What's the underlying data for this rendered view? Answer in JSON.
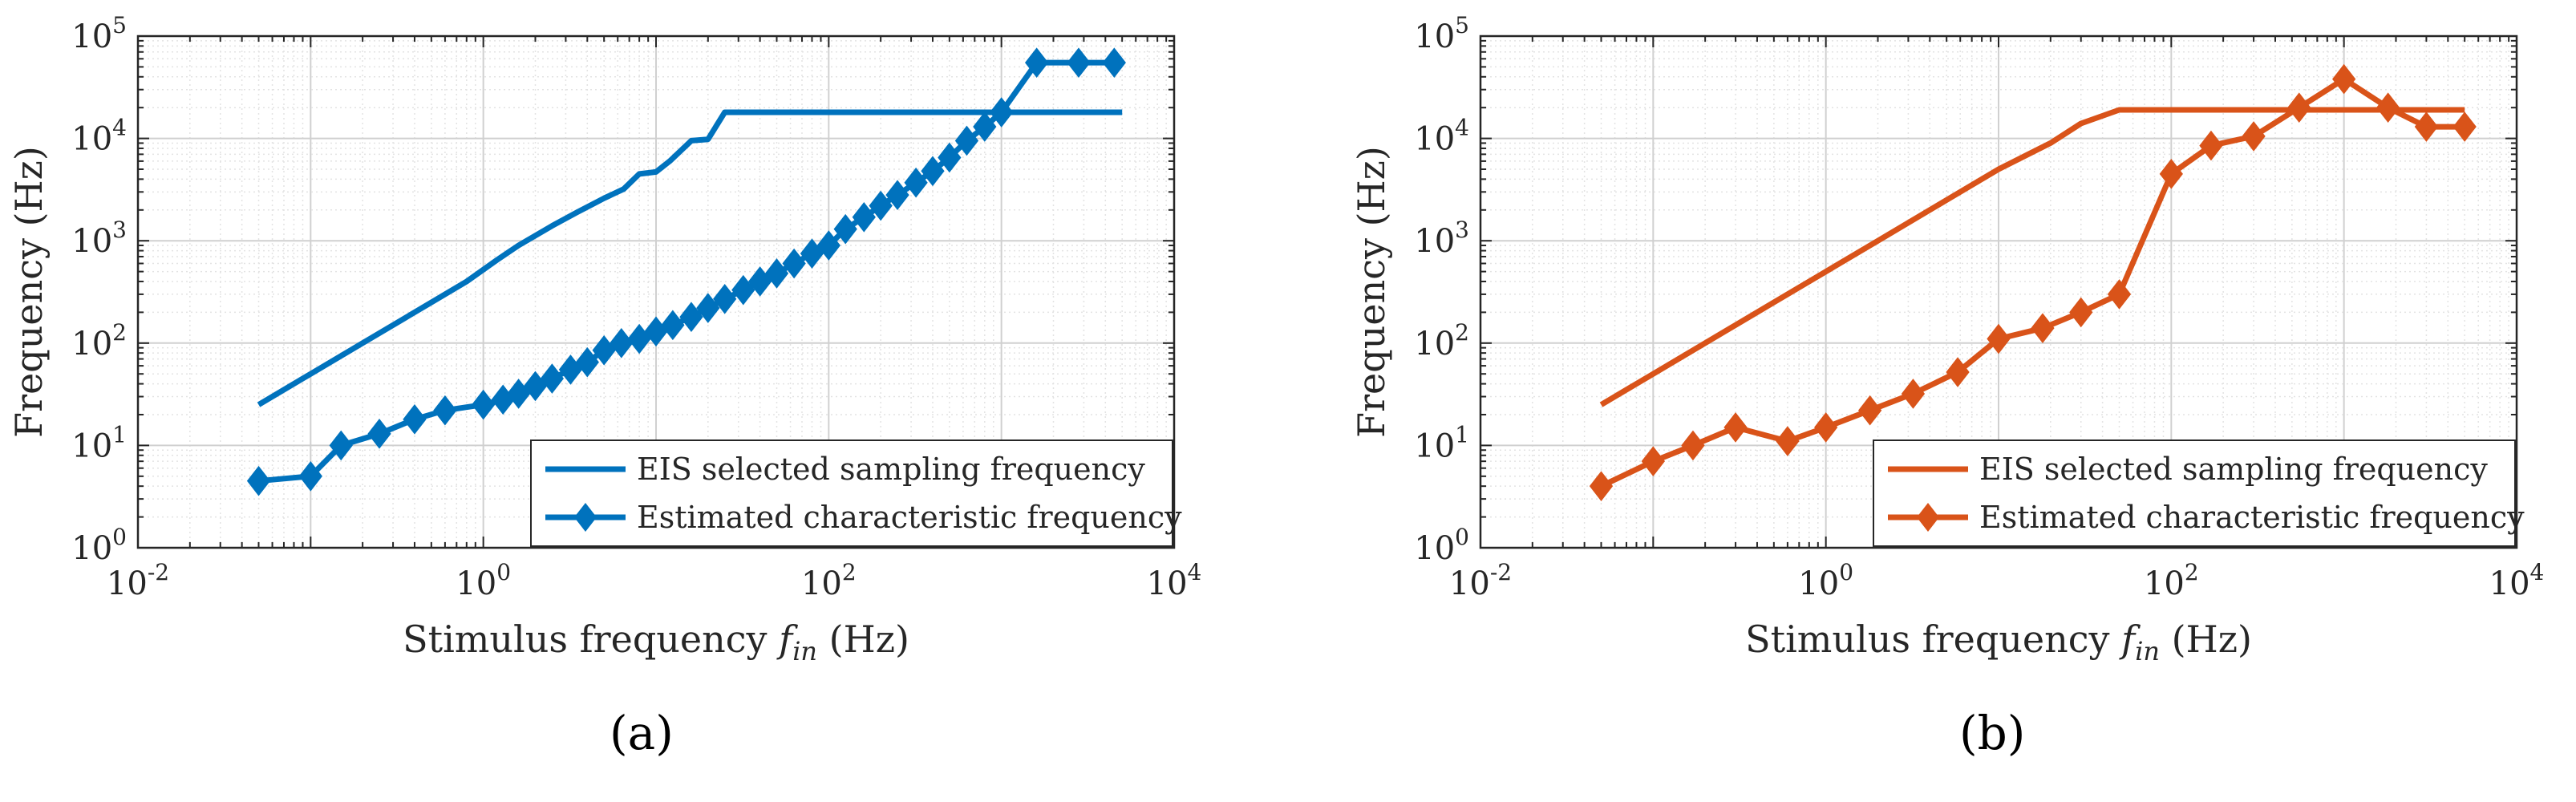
{
  "figure": {
    "panel_labels": [
      "(a)",
      "(b)"
    ]
  },
  "chart_data": [
    {
      "type": "line",
      "panel": "(a)",
      "xscale": "log",
      "yscale": "log",
      "xlim": [
        0.01,
        10000
      ],
      "ylim": [
        1,
        100000
      ],
      "xlabel_main": "Stimulus frequency ",
      "xlabel_var": "f",
      "xlabel_sub": "in",
      "xlabel_unit": " (Hz)",
      "ylabel": "Frequency (Hz)",
      "x_ticks": [
        {
          "base": "10",
          "exp": "-2"
        },
        {
          "base": "10",
          "exp": "0"
        },
        {
          "base": "10",
          "exp": "2"
        },
        {
          "base": "10",
          "exp": "4"
        }
      ],
      "y_ticks": [
        {
          "base": "10",
          "exp": "0"
        },
        {
          "base": "10",
          "exp": "1"
        },
        {
          "base": "10",
          "exp": "2"
        },
        {
          "base": "10",
          "exp": "3"
        },
        {
          "base": "10",
          "exp": "4"
        },
        {
          "base": "10",
          "exp": "5"
        }
      ],
      "grid": true,
      "legend_position": "bottom-right",
      "color": "#0072BD",
      "series": [
        {
          "name": "EIS selected sampling frequency",
          "marker": "none",
          "x": [
            0.05,
            0.1,
            0.2,
            0.4,
            0.8,
            1.2,
            1.6,
            2.5,
            3.5,
            5,
            6.5,
            8,
            10,
            12,
            16,
            20,
            25,
            50,
            100,
            300,
            1000,
            5000
          ],
          "y": [
            25,
            50,
            100,
            200,
            400,
            650,
            900,
            1400,
            1900,
            2600,
            3200,
            4500,
            4700,
            6000,
            9500,
            9800,
            18000,
            18000,
            18000,
            18000,
            18000,
            18000
          ]
        },
        {
          "name": "Estimated characteristic frequency",
          "marker": "diamond",
          "x": [
            0.05,
            0.1,
            0.15,
            0.25,
            0.4,
            0.6,
            1.0,
            1.3,
            1.6,
            2.0,
            2.5,
            3.2,
            4.0,
            5.0,
            6.3,
            8.0,
            10,
            12.5,
            16,
            20,
            25,
            32,
            40,
            50,
            63,
            80,
            100,
            125,
            160,
            200,
            250,
            320,
            400,
            500,
            630,
            800,
            1000,
            1600,
            2800,
            4500
          ],
          "y": [
            4.5,
            5,
            10,
            13,
            18,
            22,
            25,
            28,
            32,
            38,
            45,
            55,
            65,
            85,
            100,
            110,
            130,
            150,
            180,
            220,
            270,
            330,
            400,
            480,
            600,
            750,
            900,
            1300,
            1700,
            2200,
            2800,
            3700,
            4800,
            6500,
            9500,
            13000,
            18000,
            55000,
            55000,
            55000
          ]
        }
      ]
    },
    {
      "type": "line",
      "panel": "(b)",
      "xscale": "log",
      "yscale": "log",
      "xlim": [
        0.01,
        10000
      ],
      "ylim": [
        1,
        100000
      ],
      "xlabel_main": "Stimulus frequency ",
      "xlabel_var": "f",
      "xlabel_sub": "in",
      "xlabel_unit": " (Hz)",
      "ylabel": "Frequency (Hz)",
      "x_ticks": [
        {
          "base": "10",
          "exp": "-2"
        },
        {
          "base": "10",
          "exp": "0"
        },
        {
          "base": "10",
          "exp": "2"
        },
        {
          "base": "10",
          "exp": "4"
        }
      ],
      "y_ticks": [
        {
          "base": "10",
          "exp": "0"
        },
        {
          "base": "10",
          "exp": "1"
        },
        {
          "base": "10",
          "exp": "2"
        },
        {
          "base": "10",
          "exp": "3"
        },
        {
          "base": "10",
          "exp": "4"
        },
        {
          "base": "10",
          "exp": "5"
        }
      ],
      "grid": true,
      "legend_position": "bottom-right",
      "color": "#D95319",
      "series": [
        {
          "name": "EIS selected sampling frequency",
          "marker": "none",
          "x": [
            0.05,
            0.1,
            0.2,
            0.5,
            1,
            2,
            5,
            10,
            20,
            30,
            50,
            100,
            1000,
            5000
          ],
          "y": [
            25,
            50,
            100,
            250,
            500,
            1000,
            2500,
            5000,
            9000,
            14000,
            19000,
            19000,
            19000,
            19000
          ]
        },
        {
          "name": "Estimated characteristic frequency",
          "marker": "diamond",
          "x": [
            0.05,
            0.1,
            0.17,
            0.3,
            0.6,
            1.0,
            1.8,
            3.2,
            5.8,
            10,
            18,
            30,
            50,
            100,
            170,
            300,
            550,
            1000,
            1800,
            3000,
            5000
          ],
          "y": [
            4,
            7,
            10,
            15,
            11,
            15,
            22,
            32,
            52,
            110,
            140,
            200,
            300,
            4500,
            8500,
            10500,
            20000,
            38000,
            20000,
            13000,
            13000
          ]
        }
      ]
    }
  ]
}
